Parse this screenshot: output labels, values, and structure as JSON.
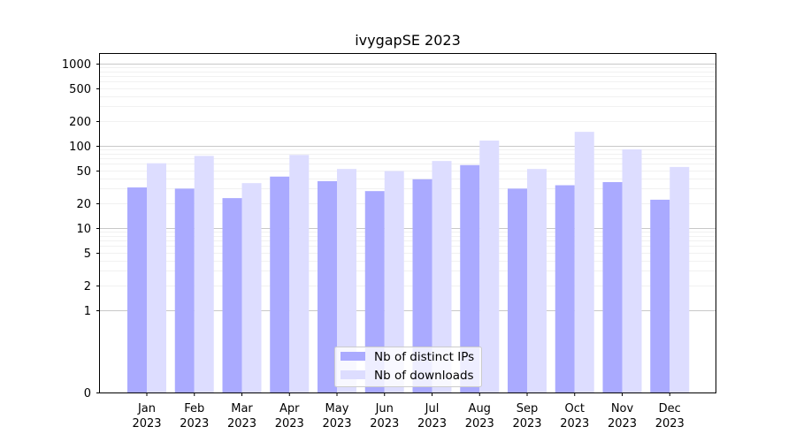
{
  "chart_data": {
    "type": "bar",
    "title": "ivygapSE 2023",
    "xlabel": "",
    "ylabel": "",
    "yscale": "symlog",
    "ylim": [
      0,
      1300
    ],
    "yticks": [
      0,
      1,
      2,
      5,
      10,
      20,
      50,
      100,
      200,
      500,
      1000
    ],
    "grid": true,
    "legend_position": "bottom-center",
    "categories": [
      [
        "Jan",
        "2023"
      ],
      [
        "Feb",
        "2023"
      ],
      [
        "Mar",
        "2023"
      ],
      [
        "Apr",
        "2023"
      ],
      [
        "May",
        "2023"
      ],
      [
        "Jun",
        "2023"
      ],
      [
        "Jul",
        "2023"
      ],
      [
        "Aug",
        "2023"
      ],
      [
        "Sep",
        "2023"
      ],
      [
        "Oct",
        "2023"
      ],
      [
        "Nov",
        "2023"
      ],
      [
        "Dec",
        "2023"
      ]
    ],
    "series": [
      {
        "name": "Nb of distinct IPs",
        "color": "#aaaaff",
        "values": [
          31,
          30,
          23,
          42,
          37,
          28,
          39,
          58,
          30,
          33,
          36,
          22
        ]
      },
      {
        "name": "Nb of downloads",
        "color": "#ddddff",
        "values": [
          61,
          75,
          35,
          77,
          52,
          49,
          65,
          115,
          52,
          147,
          90,
          55
        ]
      }
    ]
  }
}
